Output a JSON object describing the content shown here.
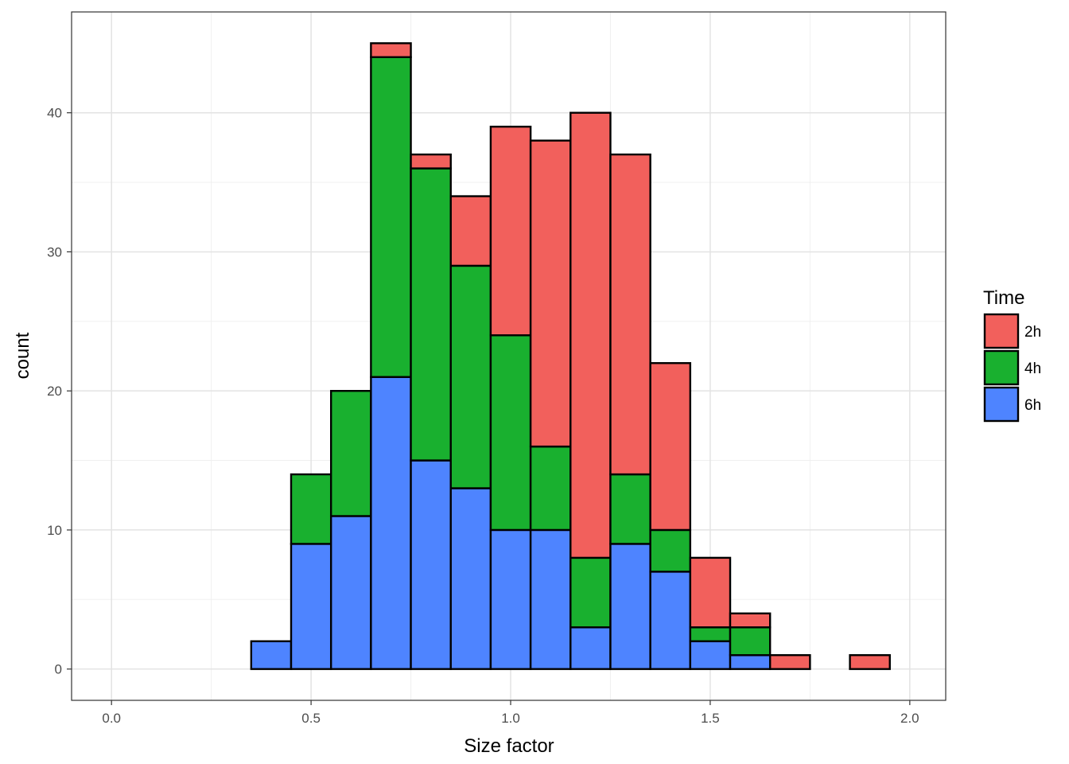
{
  "chart_data": {
    "type": "bar",
    "subtype": "stacked-histogram",
    "xlabel": "Size factor",
    "ylabel": "count",
    "xlim": [
      -0.1,
      2.09
    ],
    "ylim": [
      -2.25,
      47.25
    ],
    "x_ticks": [
      0.0,
      0.5,
      1.0,
      1.5,
      2.0
    ],
    "x_tick_labels": [
      "0.0",
      "0.5",
      "1.0",
      "1.5",
      "2.0"
    ],
    "y_ticks": [
      0,
      10,
      20,
      30,
      40
    ],
    "y_tick_labels": [
      "0",
      "10",
      "20",
      "30",
      "40"
    ],
    "bin_width": 0.1,
    "bin_centers": [
      0.1,
      0.2,
      0.3,
      0.4,
      0.5,
      0.6,
      0.7,
      0.8,
      0.9,
      1.0,
      1.1,
      1.2,
      1.3,
      1.4,
      1.5,
      1.6,
      1.7,
      1.8,
      1.9
    ],
    "series": [
      {
        "name": "6h",
        "color": "#4E84FF",
        "values": [
          0,
          0,
          0,
          2,
          9,
          11,
          21,
          15,
          13,
          10,
          10,
          3,
          9,
          7,
          2,
          1,
          0,
          0,
          0
        ]
      },
      {
        "name": "4h",
        "color": "#19B02F",
        "values": [
          0,
          0,
          0,
          0,
          5,
          9,
          23,
          21,
          16,
          14,
          6,
          5,
          5,
          3,
          1,
          2,
          0,
          0,
          0
        ]
      },
      {
        "name": "2h",
        "color": "#F2605C",
        "values": [
          0,
          0,
          0,
          0,
          0,
          0,
          1,
          1,
          5,
          15,
          22,
          32,
          23,
          12,
          5,
          1,
          1,
          0,
          1
        ]
      }
    ],
    "legend": {
      "title": "Time",
      "position": "right",
      "order": [
        "2h",
        "4h",
        "6h"
      ]
    },
    "grid": true
  }
}
